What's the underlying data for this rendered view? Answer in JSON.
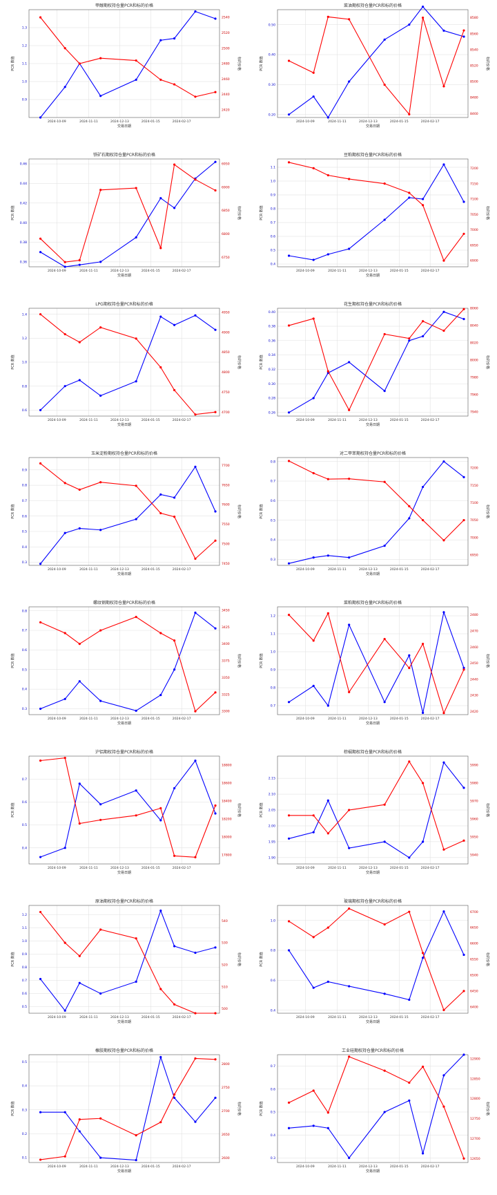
{
  "colors": {
    "series_a": "#0000ff",
    "series_b": "#ff0000",
    "grid": "#dddddd",
    "axis": "#555555"
  },
  "chart_data": [
    {
      "type": "line",
      "title": "甲醇期权持仓量PCR和标的价格",
      "xlabel": "交易日期",
      "ylabel": "PCR 数值",
      "y2label": "标的价格",
      "x_tick_labels": [
        "2024-10-09",
        "2024-11-11",
        "2024-12-13",
        "2024-01-15",
        "2024-02-17"
      ],
      "y_ticks": [
        "0.9",
        "1.0",
        "1.1",
        "1.2",
        "1.3"
      ],
      "y2_ticks": [
        "2420",
        "2440",
        "2460",
        "2480",
        "2500",
        "2520",
        "2540"
      ],
      "ylim": [
        0.8,
        1.4
      ],
      "y2lim": [
        2410,
        2550
      ],
      "series": [
        {
          "values": [
            0.8,
            0.97,
            1.1,
            0.92,
            1.01,
            1.23,
            1.24,
            1.39,
            1.35
          ]
        },
        {
          "values": [
            2540,
            2500,
            2480,
            2487,
            2484,
            2459,
            2453,
            2437,
            2443
          ]
        }
      ]
    },
    {
      "type": "line",
      "title": "菜油期权持仓量PCR和标的价格",
      "xlabel": "交易日期",
      "ylabel": "PCR 数值",
      "y2label": "标的价格",
      "x_tick_labels": [
        "2024-10-09",
        "2024-11-11",
        "2024-12-13",
        "2024-01-15",
        "2024-02-17"
      ],
      "y_ticks": [
        "0.20",
        "0.30",
        "0.40",
        "0.50"
      ],
      "y2_ticks": [
        "8460",
        "8480",
        "8500",
        "8520",
        "8540",
        "8560",
        "8580"
      ],
      "ylim": [
        0.19,
        0.55
      ],
      "y2lim": [
        8455,
        8590
      ],
      "series": [
        {
          "values": [
            0.2,
            0.26,
            0.19,
            0.31,
            0.45,
            0.5,
            0.56,
            0.48,
            0.46
          ]
        },
        {
          "values": [
            8526,
            8511,
            8581,
            8578,
            8496,
            8459,
            8580,
            8494,
            8564
          ]
        }
      ]
    },
    {
      "type": "line",
      "title": "铁矿石期权持仓量PCR和标的价格",
      "xlabel": "交易日期",
      "ylabel": "PCR 数值",
      "y2label": "标的价格",
      "x_tick_labels": [
        "2024-10-09",
        "2024-11-11",
        "2024-12-13",
        "2024-01-15",
        "2024-02-17"
      ],
      "y_ticks": [
        "0.36",
        "0.38",
        "0.40",
        "0.42",
        "0.44",
        "0.46"
      ],
      "y2_ticks": [
        "6750",
        "6800",
        "6850",
        "6900",
        "6950"
      ],
      "ylim": [
        0.355,
        0.465
      ],
      "y2lim": [
        6730,
        6960
      ],
      "series": [
        {
          "values": [
            0.37,
            0.355,
            0.357,
            0.36,
            0.385,
            0.425,
            0.415,
            0.445,
            0.462
          ]
        },
        {
          "values": [
            6790,
            6740,
            6744,
            6894,
            6898,
            6770,
            6948,
            6916,
            6893
          ]
        }
      ]
    },
    {
      "type": "line",
      "title": "豆粕期权持仓量PCR和标的价格",
      "xlabel": "交易日期",
      "ylabel": "PCR 数值",
      "y2label": "标的价格",
      "x_tick_labels": [
        "2024-10-09",
        "2024-11-11",
        "2024-12-13",
        "2024-01-15",
        "2024-02-17"
      ],
      "y_ticks": [
        "0.4",
        "0.5",
        "0.6",
        "0.7",
        "0.8",
        "0.9",
        "1.0",
        "1.1"
      ],
      "y2_ticks": [
        "6900",
        "6950",
        "7000",
        "7050",
        "7100",
        "7150",
        "7200"
      ],
      "ylim": [
        0.38,
        1.16
      ],
      "y2lim": [
        6880,
        7230
      ],
      "series": [
        {
          "values": [
            0.46,
            0.43,
            0.47,
            0.51,
            0.72,
            0.88,
            0.87,
            1.12,
            0.85
          ]
        },
        {
          "values": [
            7219,
            7200,
            7177,
            7165,
            7150,
            7120,
            7080,
            6900,
            6987
          ]
        }
      ]
    },
    {
      "type": "line",
      "title": "LPG期权持仓量PCR和标的价格",
      "xlabel": "交易日期",
      "ylabel": "PCR 数值",
      "y2label": "标的价格",
      "x_tick_labels": [
        "2024-10-09",
        "2024-11-11",
        "2024-12-13",
        "2024-01-15",
        "2024-02-17"
      ],
      "y_ticks": [
        "0.6",
        "0.8",
        "1.0",
        "1.2",
        "1.4"
      ],
      "y2_ticks": [
        "4700",
        "4750",
        "4800",
        "4850",
        "4900",
        "4950"
      ],
      "ylim": [
        0.55,
        1.45
      ],
      "y2lim": [
        4690,
        4960
      ],
      "series": [
        {
          "values": [
            0.6,
            0.8,
            0.85,
            0.72,
            0.84,
            1.38,
            1.31,
            1.39,
            1.27
          ]
        },
        {
          "values": [
            4945,
            4895,
            4875,
            4912,
            4884,
            4812,
            4755,
            4694,
            4700
          ]
        }
      ]
    },
    {
      "type": "line",
      "title": "花生期权持仓量PCR和标的价格",
      "xlabel": "交易日期",
      "ylabel": "PCR 数值",
      "y2label": "标的价格",
      "x_tick_labels": [
        "2024-10-09",
        "2024-11-11",
        "2024-12-13",
        "2024-01-15",
        "2024-02-17"
      ],
      "y_ticks": [
        "0.26",
        "0.28",
        "0.30",
        "0.32",
        "0.34",
        "0.36",
        "0.38",
        "0.40"
      ],
      "y2_ticks": [
        "7940",
        "7960",
        "7980",
        "8000",
        "8020",
        "8040",
        "8060"
      ],
      "ylim": [
        0.255,
        0.405
      ],
      "y2lim": [
        7935,
        8060
      ],
      "series": [
        {
          "values": [
            0.26,
            0.28,
            0.315,
            0.33,
            0.29,
            0.36,
            0.366,
            0.4,
            0.39
          ]
        },
        {
          "values": [
            8040,
            8048,
            7987,
            7942,
            8030,
            8025,
            8045,
            8034,
            8059
          ]
        }
      ]
    },
    {
      "type": "line",
      "title": "玉米淀粉期权持仓量PCR和标的价格",
      "xlabel": "交易日期",
      "ylabel": "PCR 数值",
      "y2label": "标的价格",
      "x_tick_labels": [
        "2024-10-09",
        "2024-11-11",
        "2024-12-13",
        "2024-01-15",
        "2024-02-17"
      ],
      "y_ticks": [
        "0.3",
        "0.4",
        "0.5",
        "0.6",
        "0.7",
        "0.8",
        "0.9"
      ],
      "y2_ticks": [
        "7450",
        "7500",
        "7550",
        "7600",
        "7650",
        "7700"
      ],
      "ylim": [
        0.28,
        0.98
      ],
      "y2lim": [
        7445,
        7720
      ],
      "series": [
        {
          "values": [
            0.29,
            0.49,
            0.52,
            0.51,
            0.58,
            0.74,
            0.72,
            0.92,
            0.63
          ]
        },
        {
          "values": [
            7705,
            7655,
            7638,
            7657,
            7648,
            7578,
            7569,
            7462,
            7508
          ]
        }
      ]
    },
    {
      "type": "line",
      "title": "对二甲苯期权持仓量PCR和标的价格",
      "xlabel": "交易日期",
      "ylabel": "PCR 数值",
      "y2label": "标的价格",
      "x_tick_labels": [
        "2024-10-09",
        "2024-11-11",
        "2024-12-13",
        "2024-01-15",
        "2024-02-17"
      ],
      "y_ticks": [
        "0.3",
        "0.4",
        "0.5",
        "0.6",
        "0.7",
        "0.8"
      ],
      "y2_ticks": [
        "6950",
        "7000",
        "7050",
        "7100",
        "7150",
        "7200"
      ],
      "ylim": [
        0.27,
        0.82
      ],
      "y2lim": [
        6920,
        7230
      ],
      "series": [
        {
          "values": [
            0.28,
            0.31,
            0.32,
            0.31,
            0.37,
            0.51,
            0.67,
            0.8,
            0.72
          ]
        },
        {
          "values": [
            7220,
            7185,
            7168,
            7169,
            7160,
            7090,
            7050,
            6992,
            7050
          ]
        }
      ]
    },
    {
      "type": "line",
      "title": "螺纹钢期权持仓量PCR和标的价格",
      "xlabel": "交易日期",
      "ylabel": "PCR 数值",
      "y2label": "标的价格",
      "x_tick_labels": [
        "2024-10-09",
        "2024-11-11",
        "2024-12-13",
        "2024-01-15",
        "2024-02-17"
      ],
      "y_ticks": [
        "0.3",
        "0.4",
        "0.5",
        "0.6",
        "0.7",
        "0.8"
      ],
      "y2_ticks": [
        "3300",
        "3325",
        "3350",
        "3375",
        "3400",
        "3425",
        "3450"
      ],
      "ylim": [
        0.27,
        0.82
      ],
      "y2lim": [
        3295,
        3455
      ],
      "series": [
        {
          "values": [
            0.3,
            0.35,
            0.44,
            0.34,
            0.29,
            0.37,
            0.5,
            0.79,
            0.71
          ]
        },
        {
          "values": [
            3432,
            3416,
            3400,
            3420,
            3440,
            3416,
            3405,
            3300,
            3328
          ]
        }
      ]
    },
    {
      "type": "line",
      "title": "菜粕期权持仓量PCR和标的价格",
      "xlabel": "交易日期",
      "ylabel": "PCR 数值",
      "y2label": "标的价格",
      "x_tick_labels": [
        "2024-10-09",
        "2024-11-11",
        "2024-12-13",
        "2024-01-15",
        "2024-02-17"
      ],
      "y_ticks": [
        "0.7",
        "0.8",
        "0.9",
        "1.0",
        "1.1",
        "1.2"
      ],
      "y2_ticks": [
        "2420",
        "2430",
        "2440",
        "2450",
        "2460",
        "2470",
        "2480"
      ],
      "ylim": [
        0.65,
        1.25
      ],
      "y2lim": [
        2418,
        2485
      ],
      "series": [
        {
          "values": [
            0.72,
            0.81,
            0.7,
            1.15,
            0.72,
            0.98,
            0.66,
            1.22,
            0.91
          ]
        },
        {
          "values": [
            2480,
            2464,
            2481,
            2432,
            2465,
            2447,
            2462,
            2419,
            2446
          ]
        }
      ]
    },
    {
      "type": "line",
      "title": "沪铝期权持仓量PCR和标的价格",
      "xlabel": "交易日期",
      "ylabel": "PCR 数值",
      "y2label": "标的价格",
      "x_tick_labels": [
        "2024-10-09",
        "2024-11-11",
        "2024-12-13",
        "2024-01-15",
        "2024-02-17"
      ],
      "y_ticks": [
        "0.4",
        "0.5",
        "0.6",
        "0.7"
      ],
      "y2_ticks": [
        "17800",
        "18000",
        "18200",
        "18400",
        "18600",
        "18800"
      ],
      "ylim": [
        0.33,
        0.8
      ],
      "y2lim": [
        17700,
        18900
      ],
      "series": [
        {
          "values": [
            0.36,
            0.4,
            0.68,
            0.59,
            0.65,
            0.52,
            0.66,
            0.78,
            0.55
          ]
        },
        {
          "values": [
            18850,
            18880,
            18150,
            18190,
            18240,
            18320,
            17790,
            17775,
            18350
          ]
        }
      ]
    },
    {
      "type": "line",
      "title": "棕榈期权持仓量PCR和标的价格",
      "xlabel": "交易日期",
      "ylabel": "PCR 数值",
      "y2label": "标的价格",
      "x_tick_labels": [
        "2024-10-09",
        "2024-11-11",
        "2024-12-13",
        "2024-01-15",
        "2024-02-17"
      ],
      "y_ticks": [
        "1.90",
        "1.95",
        "2.00",
        "2.05",
        "2.10",
        "2.15"
      ],
      "y2_ticks": [
        "5940",
        "5950",
        "5960",
        "5970",
        "5980",
        "5990"
      ],
      "ylim": [
        1.88,
        2.22
      ],
      "y2lim": [
        5935,
        5995
      ],
      "series": [
        {
          "values": [
            1.96,
            1.98,
            2.08,
            1.93,
            1.95,
            1.9,
            1.95,
            2.2,
            2.12
          ]
        },
        {
          "values": [
            5962,
            5962,
            5952,
            5965,
            5968,
            5992,
            5980,
            5943,
            5948
          ]
        }
      ]
    },
    {
      "type": "line",
      "title": "原油期权持仓量PCR和标的价格",
      "xlabel": "交易日期",
      "ylabel": "PCR 数值",
      "y2label": "标的价格",
      "x_tick_labels": [
        "2024-10-09",
        "2024-11-11",
        "2024-12-13",
        "2024-01-15",
        "2024-02-17"
      ],
      "y_ticks": [
        "0.5",
        "0.6",
        "0.7",
        "0.8",
        "0.9",
        "1.0",
        "1.1",
        "1.2"
      ],
      "y2_ticks": [
        "500",
        "510",
        "520",
        "530",
        "540"
      ],
      "ylim": [
        0.45,
        1.27
      ],
      "y2lim": [
        498,
        547
      ],
      "series": [
        {
          "values": [
            0.71,
            0.47,
            0.68,
            0.6,
            0.69,
            1.23,
            0.96,
            0.91,
            0.95
          ]
        },
        {
          "values": [
            544,
            530,
            524,
            536,
            532,
            509,
            502,
            498,
            498
          ]
        }
      ]
    },
    {
      "type": "line",
      "title": "玻璃期权持仓量PCR和标的价格",
      "xlabel": "交易日期",
      "ylabel": "PCR 数值",
      "y2label": "标的价格",
      "x_tick_labels": [
        "2024-10-09",
        "2024-11-11",
        "2024-12-13",
        "2024-01-15",
        "2024-02-17"
      ],
      "y_ticks": [
        "0.4",
        "0.6",
        "0.8",
        "1.0"
      ],
      "y2_ticks": [
        "6400",
        "6450",
        "6500",
        "6550",
        "6600",
        "6650",
        "6700"
      ],
      "ylim": [
        0.38,
        1.1
      ],
      "y2lim": [
        6380,
        6720
      ],
      "series": [
        {
          "values": [
            0.8,
            0.55,
            0.59,
            0.56,
            0.51,
            0.47,
            0.75,
            1.06,
            0.77
          ]
        },
        {
          "values": [
            6670,
            6620,
            6650,
            6710,
            6660,
            6700,
            6570,
            6390,
            6450
          ]
        }
      ]
    },
    {
      "type": "line",
      "title": "橡胶期权持仓量PCR和标的价格",
      "xlabel": "交易日期",
      "ylabel": "PCR 数值",
      "y2label": "标的价格",
      "x_tick_labels": [
        "2024-10-09",
        "2024-11-11",
        "2024-12-13",
        "2024-01-15",
        "2024-02-17"
      ],
      "y_ticks": [
        "0.1",
        "0.2",
        "0.3",
        "0.4",
        "0.5"
      ],
      "y2_ticks": [
        "2600",
        "2650",
        "2700",
        "2750",
        "2800"
      ],
      "ylim": [
        0.08,
        0.53
      ],
      "y2lim": [
        2590,
        2820
      ],
      "series": [
        {
          "values": [
            0.29,
            0.29,
            0.21,
            0.1,
            0.09,
            0.52,
            0.35,
            0.25,
            0.35
          ]
        },
        {
          "values": [
            2596,
            2603,
            2682,
            2684,
            2648,
            2676,
            2735,
            2812,
            2810
          ]
        }
      ]
    },
    {
      "type": "line",
      "title": "工业硅期权持仓量PCR和标的价格",
      "xlabel": "交易日期",
      "ylabel": "PCR 数值",
      "y2label": "标的价格",
      "x_tick_labels": [
        "2024-10-09",
        "2024-11-11",
        "2024-12-13",
        "2024-01-15",
        "2024-02-17"
      ],
      "y_ticks": [
        "0.3",
        "0.4",
        "0.5",
        "0.6",
        "0.7"
      ],
      "y2_ticks": [
        "12650",
        "12700",
        "12750",
        "12800",
        "12850",
        "12900"
      ],
      "ylim": [
        0.28,
        0.75
      ],
      "y2lim": [
        12640,
        12910
      ],
      "series": [
        {
          "values": [
            0.43,
            0.44,
            0.43,
            0.3,
            0.5,
            0.55,
            0.32,
            0.66,
            0.75
          ]
        },
        {
          "values": [
            12790,
            12820,
            12765,
            12905,
            12870,
            12840,
            12880,
            12780,
            12650
          ]
        }
      ]
    }
  ]
}
